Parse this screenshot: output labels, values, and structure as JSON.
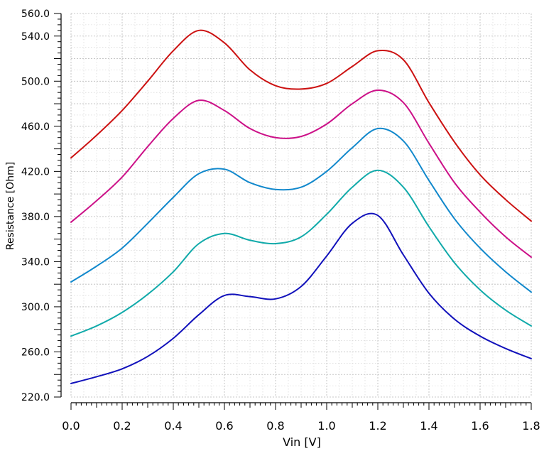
{
  "chart_data": {
    "type": "line",
    "title": "",
    "xlabel": "Vin [V]",
    "ylabel": "Resistance [Ohm]",
    "xlim": [
      0.0,
      1.8
    ],
    "ylim": [
      220.0,
      560.0
    ],
    "x_ticks": [
      "0.0",
      "0.2",
      "0.4",
      "0.6",
      "0.8",
      "1.0",
      "1.2",
      "1.4",
      "1.6",
      "1.8"
    ],
    "y_ticks": [
      "220.0",
      "260.0",
      "300.0",
      "340.0",
      "380.0",
      "420.0",
      "460.0",
      "500.0",
      "540.0",
      "560.0"
    ],
    "grid": true,
    "legend": "none",
    "x": [
      0.0,
      0.1,
      0.2,
      0.3,
      0.4,
      0.5,
      0.6,
      0.7,
      0.8,
      0.9,
      1.0,
      1.1,
      1.2,
      1.3,
      1.4,
      1.5,
      1.6,
      1.7,
      1.8
    ],
    "series": [
      {
        "color": "#cc1111",
        "values": [
          432,
          452,
          474,
          500,
          527,
          545,
          534,
          510,
          496,
          493,
          498,
          513,
          527,
          519,
          481,
          446,
          417,
          395,
          376
        ]
      },
      {
        "color": "#cc1188",
        "values": [
          375,
          394,
          415,
          442,
          467,
          483,
          474,
          458,
          450,
          451,
          462,
          480,
          492,
          481,
          445,
          410,
          384,
          362,
          344
        ]
      },
      {
        "color": "#1188cc",
        "values": [
          322,
          336,
          352,
          374,
          397,
          418,
          422,
          410,
          404,
          406,
          420,
          441,
          458,
          447,
          412,
          378,
          352,
          331,
          313
        ]
      },
      {
        "color": "#11aaaa",
        "values": [
          274,
          283,
          295,
          311,
          331,
          356,
          365,
          359,
          356,
          362,
          382,
          406,
          421,
          406,
          371,
          339,
          315,
          297,
          283
        ]
      },
      {
        "color": "#1111bb",
        "values": [
          232,
          238,
          245,
          256,
          272,
          293,
          310,
          309,
          307,
          318,
          345,
          374,
          381,
          346,
          312,
          289,
          274,
          263,
          254
        ]
      }
    ]
  }
}
